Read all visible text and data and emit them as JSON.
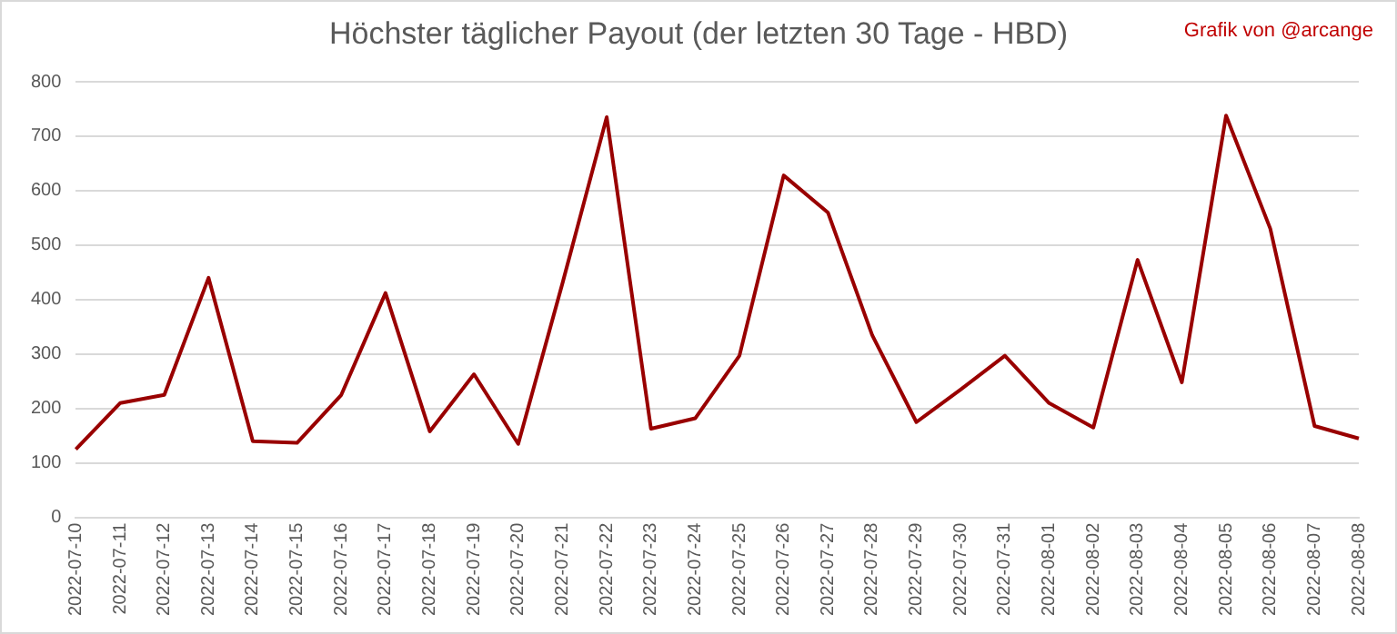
{
  "chart_data": {
    "type": "line",
    "title": "Höchster täglicher Payout (der letzten 30 Tage - HBD)",
    "annotations": [
      "Grafik von @arcange"
    ],
    "categories": [
      "2022-07-10",
      "2022-07-11",
      "2022-07-12",
      "2022-07-13",
      "2022-07-14",
      "2022-07-15",
      "2022-07-16",
      "2022-07-17",
      "2022-07-18",
      "2022-07-19",
      "2022-07-20",
      "2022-07-21",
      "2022-07-22",
      "2022-07-23",
      "2022-07-24",
      "2022-07-25",
      "2022-07-26",
      "2022-07-27",
      "2022-07-28",
      "2022-07-29",
      "2022-07-30",
      "2022-07-31",
      "2022-08-01",
      "2022-08-02",
      "2022-08-03",
      "2022-08-04",
      "2022-08-05",
      "2022-08-06",
      "2022-08-07",
      "2022-08-08"
    ],
    "series": [
      {
        "color": "#990000",
        "values": [
          125,
          210,
          225,
          440,
          140,
          137,
          225,
          412,
          158,
          263,
          135,
          430,
          735,
          163,
          182,
          297,
          628,
          560,
          335,
          175,
          235,
          297,
          210,
          165,
          473,
          248,
          738,
          530,
          168,
          145
        ]
      }
    ],
    "ylim": [
      0,
      800
    ],
    "yticks": [
      0,
      100,
      200,
      300,
      400,
      500,
      600,
      700,
      800
    ],
    "grid": "y",
    "legend": false,
    "marker": "none"
  }
}
